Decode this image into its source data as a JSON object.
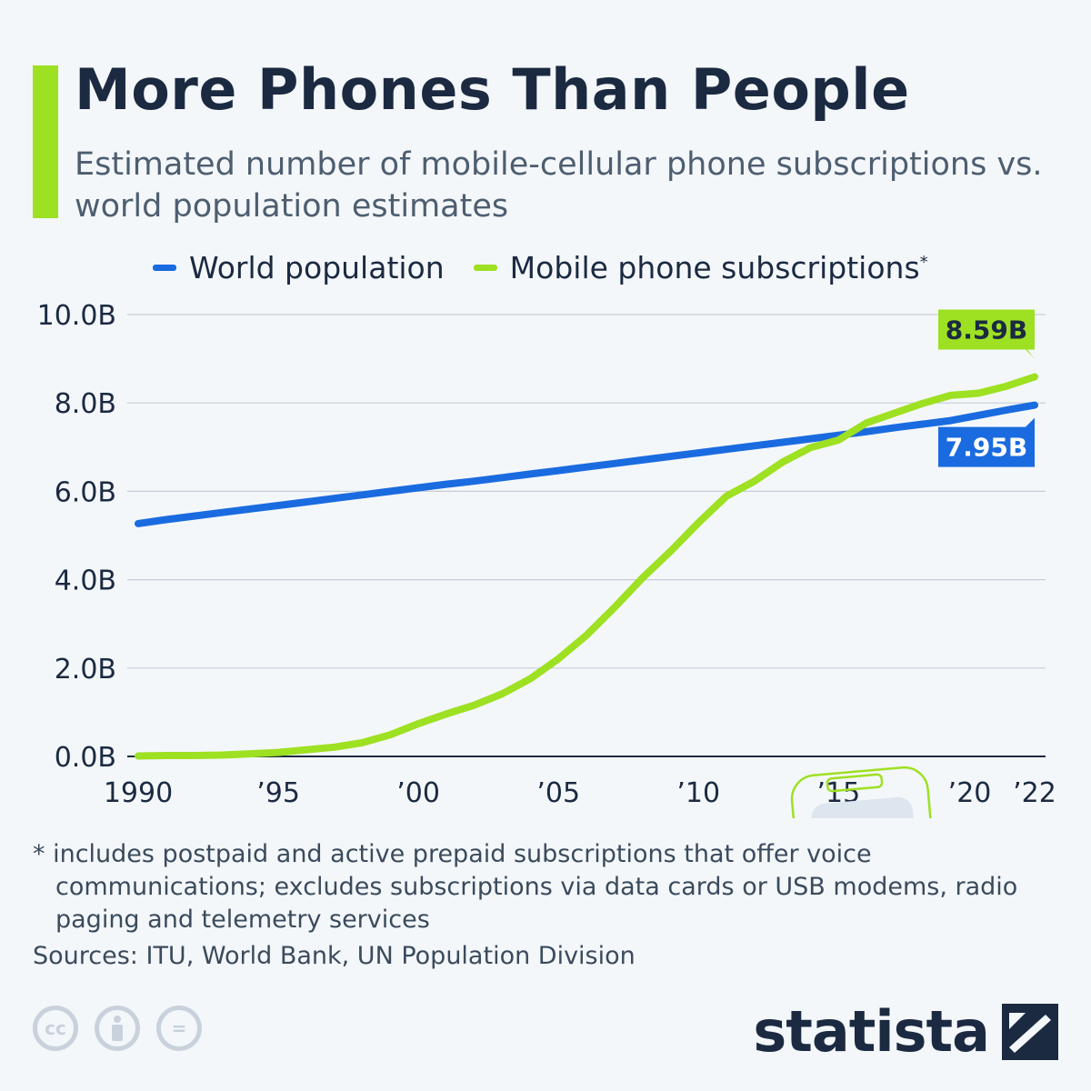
{
  "title": "More Phones Than People",
  "subtitle": "Estimated number of mobile-cellular phone subscriptions vs. world population estimates",
  "legend": {
    "population_label": "World population",
    "mobile_label": "Mobile phone subscriptions",
    "mobile_marker": "*"
  },
  "colors": {
    "population": "#1a6be0",
    "mobile": "#9ee022",
    "accent": "#9ee022",
    "text": "#1b2a41"
  },
  "chart_data": {
    "type": "line",
    "title": "More Phones Than People",
    "xlabel": "",
    "ylabel": "",
    "xlim": [
      1990,
      2022
    ],
    "ylim": [
      0,
      10
    ],
    "y_ticks": [
      0,
      2,
      4,
      6,
      8,
      10
    ],
    "y_tick_labels": [
      "0.0B",
      "2.0B",
      "4.0B",
      "6.0B",
      "8.0B",
      "10.0B"
    ],
    "x_ticks": [
      1990,
      1995,
      2000,
      2005,
      2010,
      2015,
      2020,
      2022
    ],
    "x_tick_labels": [
      "1990",
      "’95",
      "’00",
      "’05",
      "’10",
      "’15",
      "’20",
      "’22"
    ],
    "grid": true,
    "legend_position": "top",
    "x": [
      1990,
      1991,
      1992,
      1993,
      1994,
      1995,
      1996,
      1997,
      1998,
      1999,
      2000,
      2001,
      2002,
      2003,
      2004,
      2005,
      2006,
      2007,
      2008,
      2009,
      2010,
      2011,
      2012,
      2013,
      2014,
      2015,
      2016,
      2017,
      2018,
      2019,
      2020,
      2021,
      2022
    ],
    "series": [
      {
        "name": "World population",
        "values": [
          5.27,
          5.36,
          5.44,
          5.52,
          5.6,
          5.68,
          5.76,
          5.84,
          5.92,
          6.0,
          6.08,
          6.16,
          6.23,
          6.31,
          6.39,
          6.47,
          6.55,
          6.63,
          6.71,
          6.79,
          6.87,
          6.95,
          7.03,
          7.11,
          7.19,
          7.27,
          7.35,
          7.44,
          7.52,
          7.6,
          7.72,
          7.84,
          7.95
        ],
        "end_label": "7.95B"
      },
      {
        "name": "Mobile phone subscriptions",
        "values": [
          0.01,
          0.02,
          0.02,
          0.03,
          0.06,
          0.09,
          0.15,
          0.21,
          0.31,
          0.49,
          0.74,
          0.96,
          1.16,
          1.42,
          1.76,
          2.21,
          2.74,
          3.37,
          4.04,
          4.64,
          5.29,
          5.89,
          6.23,
          6.66,
          6.99,
          7.16,
          7.55,
          7.77,
          7.99,
          8.17,
          8.22,
          8.38,
          8.59
        ],
        "end_label": "8.59B"
      }
    ]
  },
  "footnote": "* includes postpaid and active prepaid subscriptions that offer voice communications; excludes subscriptions via data cards or USB modems, radio paging and telemetry services",
  "sources": "Sources: ITU, World Bank, UN Population Division",
  "license_icons": [
    "cc-icon",
    "attribution-icon",
    "no-derivatives-icon"
  ],
  "cc_label": "cc",
  "nd_label": "=",
  "brand": "statista"
}
